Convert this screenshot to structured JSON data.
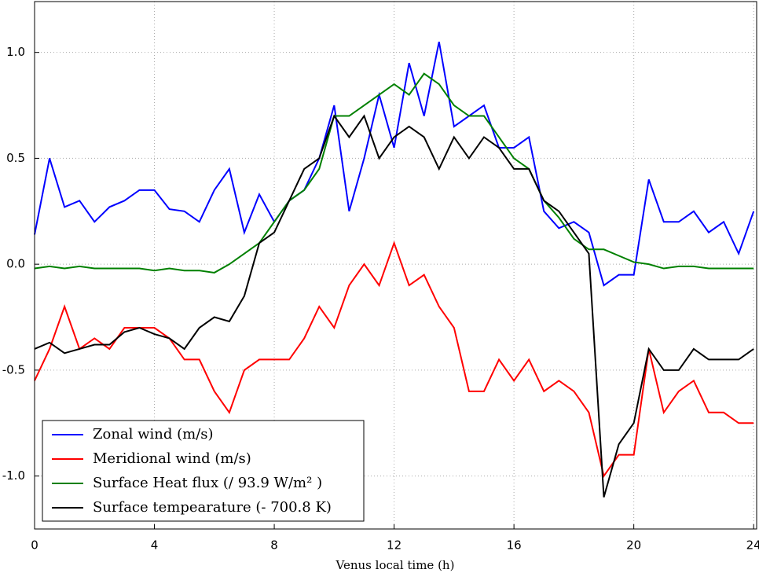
{
  "chart_data": {
    "type": "line",
    "xlabel": "Venus local time (h)",
    "x": [
      0,
      0.5,
      1,
      1.5,
      2,
      2.5,
      3,
      3.5,
      4,
      4.5,
      5,
      5.5,
      6,
      6.5,
      7,
      7.5,
      8,
      8.5,
      9,
      9.5,
      10,
      10.5,
      11,
      11.5,
      12,
      12.5,
      13,
      13.5,
      14,
      14.5,
      15,
      15.5,
      16,
      16.5,
      17,
      17.5,
      18,
      18.5,
      19,
      19.5,
      20,
      20.5,
      21,
      21.5,
      22,
      22.5,
      23,
      23.5,
      24
    ],
    "series": [
      {
        "name": "Zonal wind (m/s)",
        "color": "#0000ff",
        "values": [
          0.14,
          0.5,
          0.27,
          0.3,
          0.2,
          0.27,
          0.3,
          0.35,
          0.35,
          0.26,
          0.25,
          0.2,
          0.35,
          0.45,
          0.15,
          0.33,
          0.2,
          0.3,
          0.35,
          0.5,
          0.75,
          0.25,
          0.5,
          0.8,
          0.55,
          0.95,
          0.7,
          1.05,
          0.65,
          0.7,
          0.75,
          0.55,
          0.55,
          0.6,
          0.25,
          0.17,
          0.2,
          0.15,
          -0.1,
          -0.05,
          -0.05,
          0.4,
          0.2,
          0.2,
          0.25,
          0.15,
          0.2,
          0.05,
          0.25
        ]
      },
      {
        "name": "Meridional wind (m/s)",
        "color": "#ff0000",
        "values": [
          -0.55,
          -0.4,
          -0.2,
          -0.4,
          -0.35,
          -0.4,
          -0.3,
          -0.3,
          -0.3,
          -0.35,
          -0.45,
          -0.45,
          -0.6,
          -0.7,
          -0.5,
          -0.45,
          -0.45,
          -0.45,
          -0.35,
          -0.2,
          -0.3,
          -0.1,
          0.0,
          -0.1,
          0.1,
          -0.1,
          -0.05,
          -0.2,
          -0.3,
          -0.6,
          -0.6,
          -0.45,
          -0.55,
          -0.45,
          -0.6,
          -0.55,
          -0.6,
          -0.7,
          -1.0,
          -0.9,
          -0.9,
          -0.4,
          -0.7,
          -0.6,
          -0.55,
          -0.7,
          -0.7,
          -0.75,
          -0.75
        ]
      },
      {
        "name": "Surface  Heat flux (/ 93.9 W/m² )",
        "color": "#008000",
        "values": [
          -0.02,
          -0.01,
          -0.02,
          -0.01,
          -0.02,
          -0.02,
          -0.02,
          -0.02,
          -0.03,
          -0.02,
          -0.03,
          -0.03,
          -0.04,
          0.0,
          0.05,
          0.1,
          0.2,
          0.3,
          0.35,
          0.45,
          0.7,
          0.7,
          0.75,
          0.8,
          0.85,
          0.8,
          0.9,
          0.85,
          0.75,
          0.7,
          0.7,
          0.6,
          0.5,
          0.45,
          0.3,
          0.22,
          0.12,
          0.07,
          0.07,
          0.04,
          0.01,
          0.0,
          -0.02,
          -0.01,
          -0.01,
          -0.02,
          -0.02,
          -0.02,
          -0.02
        ]
      },
      {
        "name": "Surface tempearature (- 700.8 K)",
        "color": "#000000",
        "values": [
          -0.4,
          -0.37,
          -0.42,
          -0.4,
          -0.38,
          -0.38,
          -0.32,
          -0.3,
          -0.33,
          -0.35,
          -0.4,
          -0.3,
          -0.25,
          -0.27,
          -0.15,
          0.1,
          0.15,
          0.3,
          0.45,
          0.5,
          0.7,
          0.6,
          0.7,
          0.5,
          0.6,
          0.65,
          0.6,
          0.45,
          0.6,
          0.5,
          0.6,
          0.55,
          0.45,
          0.45,
          0.3,
          0.25,
          0.15,
          0.05,
          -1.1,
          -0.85,
          -0.75,
          -0.4,
          -0.5,
          -0.5,
          -0.4,
          -0.45,
          -0.45,
          -0.45,
          -0.4
        ]
      }
    ],
    "xlim": [
      0,
      24.1
    ],
    "ylim": [
      -1.25,
      1.24
    ],
    "xticks": [
      0,
      4,
      8,
      12,
      16,
      20,
      24
    ],
    "yticks": [
      {
        "value": -1.0,
        "label": "-1.0"
      },
      {
        "value": -0.5,
        "label": "-0.5"
      },
      {
        "value": 0.0,
        "label": "0.0"
      },
      {
        "value": 0.5,
        "label": "0.5"
      },
      {
        "value": 1.0,
        "label": "1.0"
      }
    ],
    "grid": true,
    "legend": "lower left"
  }
}
